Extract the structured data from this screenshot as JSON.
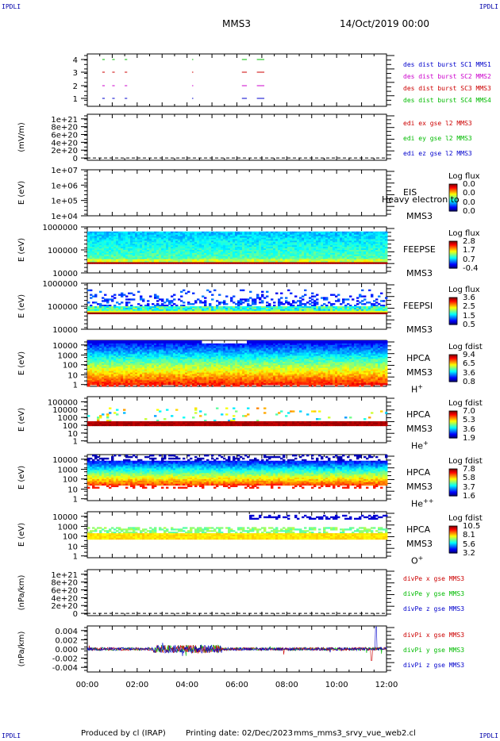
{
  "header": {
    "corner_tl": "IPDLI",
    "corner_tr": "IPDLI",
    "corner_bl": "IPDLI",
    "corner_br": "IPDLI",
    "mission": "MMS3",
    "date": "14/Oct/2019 00:00"
  },
  "footer": {
    "produced_by": "Produced by cl (IRAP)",
    "printing_date": "Printing date: 02/Dec/2023",
    "filename": "mms_mms3_srvy_vue_web2.cl"
  },
  "chart_data": {
    "type": "stacked-panels",
    "time_axis": {
      "range": [
        "00:00",
        "12:00"
      ],
      "tick_labels": [
        "00:00",
        "02:00",
        "04:00",
        "06:00",
        "08:00",
        "10:00",
        "12:00"
      ]
    },
    "panels": [
      {
        "id": "burst",
        "type": "scatter",
        "ytick_labels": [
          "1",
          "2",
          "3",
          "4"
        ],
        "legend": [
          {
            "text": "des dist burst SC1 MMS1",
            "color": "#0000cc"
          },
          {
            "text": "des dist burst SC2 MMS2",
            "color": "#cc00cc"
          },
          {
            "text": "des dist burst SC3 MMS3",
            "color": "#cc0000"
          },
          {
            "text": "des dist burst SC4 MMS4",
            "color": "#00bb00"
          }
        ],
        "segments_hours": {
          "sc4": [
            [
              0.6,
              0.7
            ],
            [
              1.0,
              1.1
            ],
            [
              1.5,
              1.6
            ],
            [
              4.2,
              4.25
            ],
            [
              6.2,
              6.4
            ],
            [
              6.8,
              7.1
            ]
          ],
          "sc3": [
            [
              0.6,
              0.7
            ],
            [
              1.0,
              1.1
            ],
            [
              1.5,
              1.6
            ],
            [
              4.2,
              4.25
            ],
            [
              6.2,
              6.4
            ],
            [
              6.8,
              7.1
            ]
          ],
          "sc2": [
            [
              0.6,
              0.7
            ],
            [
              1.0,
              1.1
            ],
            [
              1.5,
              1.6
            ],
            [
              4.2,
              4.25
            ],
            [
              6.2,
              6.4
            ],
            [
              6.8,
              7.1
            ]
          ],
          "sc1": [
            [
              0.6,
              0.7
            ],
            [
              1.0,
              1.1
            ],
            [
              1.5,
              1.6
            ],
            [
              4.2,
              4.25
            ],
            [
              6.2,
              6.4
            ],
            [
              6.8,
              7.1
            ]
          ]
        }
      },
      {
        "id": "edi",
        "type": "line",
        "ylabel": "(mV/m)",
        "ytick_labels": [
          "0",
          "2e+20",
          "4e+20",
          "6e+20",
          "8e+20",
          "1e+21"
        ],
        "legend": [
          {
            "text": "edi ex gse l2 MMS3",
            "color": "#cc0000"
          },
          {
            "text": "edi ey gse l2 MMS3",
            "color": "#00bb00"
          },
          {
            "text": "edi ez gse l2 MMS3",
            "color": "#0000cc"
          }
        ]
      },
      {
        "id": "eis",
        "type": "heatmap",
        "ylabel": "E (eV)",
        "ytick_labels": [
          "1e+04",
          "1e+05",
          "1e+06",
          "1e+07"
        ],
        "instrument": [
          "EIS",
          "MMS3"
        ],
        "overlay_text": "Heavy electron to",
        "colorbar": {
          "title": "Log flux",
          "ticks": [
            "0.0",
            "0.0",
            "0.0",
            "0.0"
          ]
        }
      },
      {
        "id": "feepse",
        "type": "heatmap",
        "ylabel": "E (eV)",
        "ytick_labels": [
          "10000",
          "100000",
          "1000000"
        ],
        "instrument": [
          "FEEPSE",
          "MMS3"
        ],
        "colorbar": {
          "title": "Log flux",
          "ticks": [
            "2.8",
            "1.7",
            "0.7",
            "-0.4"
          ]
        }
      },
      {
        "id": "feepsi",
        "type": "heatmap",
        "ylabel": "E (eV)",
        "ytick_labels": [
          "10000",
          "100000",
          "1000000"
        ],
        "instrument": [
          "FEEPSI",
          "MMS3"
        ],
        "colorbar": {
          "title": "Log flux",
          "ticks": [
            "3.6",
            "2.5",
            "1.5",
            "0.5"
          ]
        }
      },
      {
        "id": "hpca_h",
        "type": "heatmap",
        "ylabel": "E (eV)",
        "ytick_labels": [
          "1",
          "10",
          "100",
          "1000",
          "10000"
        ],
        "instrument": [
          "HPCA",
          "MMS3",
          "H",
          "+"
        ],
        "colorbar": {
          "title": "Log fdist",
          "ticks": [
            "9.4",
            "6.5",
            "3.6",
            "0.8"
          ]
        }
      },
      {
        "id": "hpca_he",
        "type": "heatmap",
        "ylabel": "E (eV)",
        "ytick_labels": [
          "1",
          "10",
          "100",
          "1000",
          "10000",
          "100000"
        ],
        "instrument": [
          "HPCA",
          "MMS3",
          "He",
          "+"
        ],
        "colorbar": {
          "title": "Log fdist",
          "ticks": [
            "7.0",
            "5.3",
            "3.6",
            "1.9"
          ]
        }
      },
      {
        "id": "hpca_hepp",
        "type": "heatmap",
        "ylabel": "E (eV)",
        "ytick_labels": [
          "1",
          "10",
          "100",
          "1000",
          "10000"
        ],
        "instrument": [
          "HPCA",
          "MMS3",
          "He",
          "++"
        ],
        "colorbar": {
          "title": "Log fdist",
          "ticks": [
            "7.8",
            "5.8",
            "3.7",
            "1.6"
          ]
        }
      },
      {
        "id": "hpca_o",
        "type": "heatmap",
        "ylabel": "E (eV)",
        "ytick_labels": [
          "1",
          "10",
          "100",
          "1000",
          "10000"
        ],
        "instrument": [
          "HPCA",
          "MMS3",
          "O",
          "+"
        ],
        "colorbar": {
          "title": "Log fdist",
          "ticks": [
            "10.5",
            "8.1",
            "5.6",
            "3.2"
          ]
        }
      },
      {
        "id": "divpe",
        "type": "line",
        "ylabel": "(nPa/km)",
        "ytick_labels": [
          "0",
          "2e+20",
          "4e+20",
          "6e+20",
          "8e+20",
          "1e+21"
        ],
        "legend": [
          {
            "text": "divPe x gse MMS3",
            "color": "#cc0000"
          },
          {
            "text": "divPe y gse MMS3",
            "color": "#00bb00"
          },
          {
            "text": "divPe z gse MMS3",
            "color": "#0000cc"
          }
        ]
      },
      {
        "id": "divpi",
        "type": "line",
        "ylabel": "(nPa/km)",
        "ytick_labels": [
          "-0.004",
          "-0.002",
          "0.000",
          "0.002",
          "0.004"
        ],
        "ylim": [
          -0.005,
          0.005
        ],
        "legend": [
          {
            "text": "divPi x gse MMS3",
            "color": "#cc0000"
          },
          {
            "text": "divPi y gse MMS3",
            "color": "#00bb00"
          },
          {
            "text": "divPi z gse MMS3",
            "color": "#0000cc"
          }
        ]
      }
    ]
  }
}
